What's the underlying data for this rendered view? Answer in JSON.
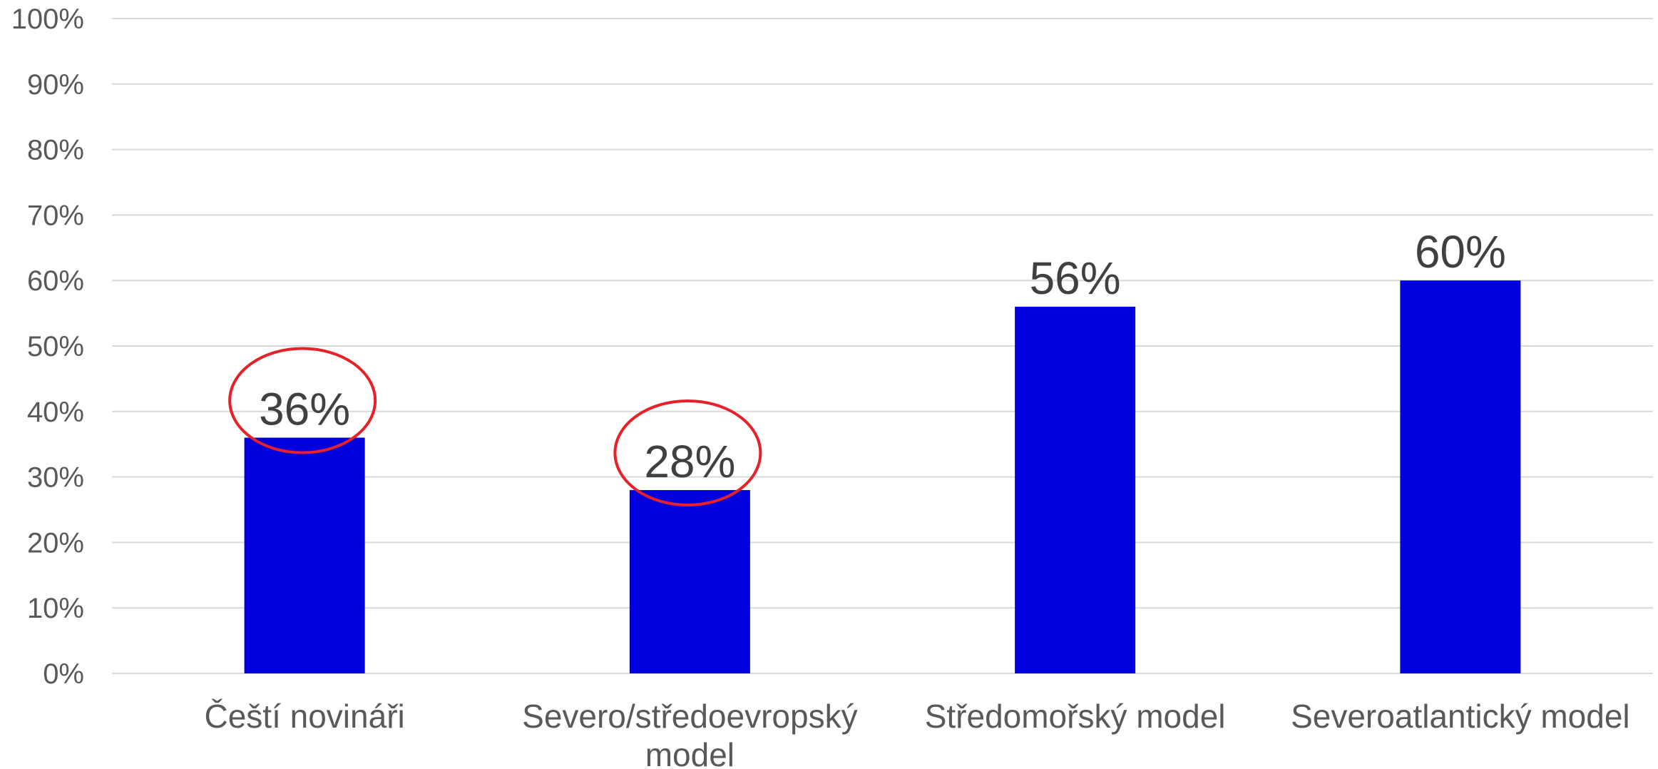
{
  "chart_data": {
    "type": "bar",
    "categories": [
      [
        "Čeští novináři"
      ],
      [
        "Severo/středoevropský",
        "model"
      ],
      [
        "Středomořský model"
      ],
      [
        "Severoatlantický model"
      ]
    ],
    "values": [
      36,
      28,
      56,
      60
    ],
    "data_labels": [
      "36%",
      "28%",
      "56%",
      "60%"
    ],
    "highlighted": [
      true,
      true,
      false,
      false
    ],
    "ylim": [
      0,
      100
    ],
    "yticks": [
      0,
      10,
      20,
      30,
      40,
      50,
      60,
      70,
      80,
      90,
      100
    ],
    "ytick_labels": [
      "0%",
      "10%",
      "20%",
      "30%",
      "40%",
      "50%",
      "60%",
      "70%",
      "80%",
      "90%",
      "100%"
    ],
    "grid": true,
    "legend": "none",
    "title": "",
    "xlabel": "",
    "ylabel": "",
    "colors": {
      "bar": "#0000DD",
      "highlight_ring": "#E8202A",
      "grid": "#D9D9D9",
      "axis_text": "#595959",
      "data_label_text": "#404040"
    }
  }
}
